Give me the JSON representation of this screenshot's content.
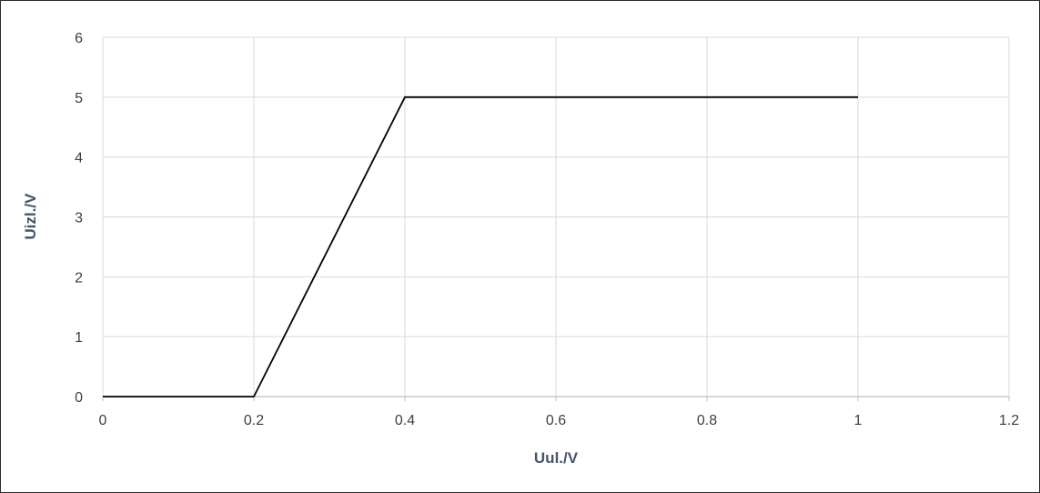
{
  "chart_data": {
    "type": "line",
    "title": "",
    "xlabel": "Uul./V",
    "ylabel": "Uizl./V",
    "xlim": [
      0,
      1.2
    ],
    "ylim": [
      0,
      6
    ],
    "x_ticks": [
      "0",
      "0.2",
      "0.4",
      "0.6",
      "0.8",
      "1",
      "1.2"
    ],
    "y_ticks": [
      "0",
      "1",
      "2",
      "3",
      "4",
      "5",
      "6"
    ],
    "grid": true,
    "legend": "none",
    "series": [
      {
        "color": "#000000",
        "x": [
          0,
          0.2,
          0.4,
          1.0
        ],
        "y": [
          0,
          0,
          5,
          5
        ]
      }
    ],
    "colors": {
      "grid": "#d9d9d9",
      "axis": "#bfbfbf",
      "line": "#000000"
    }
  }
}
